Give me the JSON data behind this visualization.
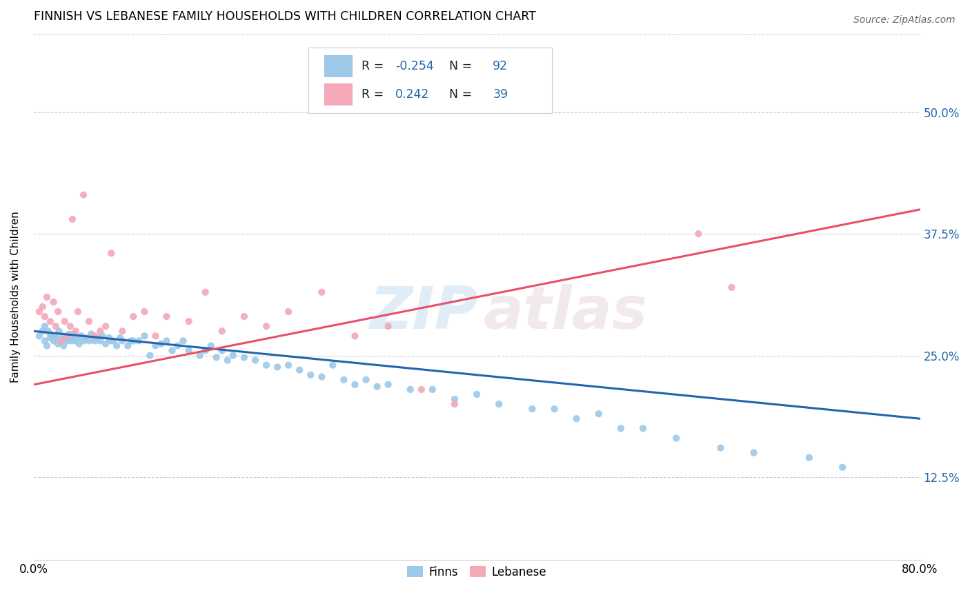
{
  "title": "FINNISH VS LEBANESE FAMILY HOUSEHOLDS WITH CHILDREN CORRELATION CHART",
  "source": "Source: ZipAtlas.com",
  "ylabel": "Family Households with Children",
  "ytick_labels": [
    "12.5%",
    "25.0%",
    "37.5%",
    "50.0%"
  ],
  "finn_color": "#9dc8e8",
  "lebanese_color": "#f4a8b8",
  "finn_line_color": "#2166ac",
  "lebanese_line_color": "#e8506a",
  "finn_R": -0.254,
  "finn_N": 92,
  "lebanese_R": 0.242,
  "lebanese_N": 39,
  "background_color": "#ffffff",
  "xlim": [
    0.0,
    0.8
  ],
  "ylim": [
    0.04,
    0.58
  ],
  "ytick_vals": [
    0.125,
    0.25,
    0.375,
    0.5
  ],
  "finn_scatter_x": [
    0.005,
    0.008,
    0.01,
    0.01,
    0.012,
    0.013,
    0.015,
    0.015,
    0.018,
    0.019,
    0.02,
    0.022,
    0.023,
    0.025,
    0.026,
    0.027,
    0.028,
    0.03,
    0.031,
    0.032,
    0.033,
    0.035,
    0.036,
    0.038,
    0.04,
    0.041,
    0.043,
    0.045,
    0.047,
    0.05,
    0.052,
    0.055,
    0.058,
    0.06,
    0.062,
    0.065,
    0.068,
    0.07,
    0.072,
    0.075,
    0.078,
    0.08,
    0.085,
    0.088,
    0.09,
    0.095,
    0.1,
    0.105,
    0.11,
    0.115,
    0.12,
    0.125,
    0.13,
    0.135,
    0.14,
    0.15,
    0.155,
    0.16,
    0.165,
    0.17,
    0.175,
    0.18,
    0.19,
    0.2,
    0.21,
    0.22,
    0.23,
    0.24,
    0.25,
    0.26,
    0.27,
    0.28,
    0.29,
    0.3,
    0.31,
    0.32,
    0.34,
    0.36,
    0.38,
    0.4,
    0.42,
    0.45,
    0.47,
    0.49,
    0.51,
    0.53,
    0.55,
    0.58,
    0.62,
    0.65,
    0.7,
    0.73
  ],
  "finn_scatter_y": [
    0.27,
    0.275,
    0.265,
    0.28,
    0.26,
    0.275,
    0.268,
    0.272,
    0.265,
    0.27,
    0.268,
    0.262,
    0.275,
    0.265,
    0.27,
    0.26,
    0.268,
    0.27,
    0.265,
    0.272,
    0.268,
    0.265,
    0.272,
    0.265,
    0.268,
    0.262,
    0.27,
    0.265,
    0.268,
    0.265,
    0.272,
    0.265,
    0.268,
    0.265,
    0.27,
    0.262,
    0.268,
    0.265,
    0.265,
    0.26,
    0.268,
    0.265,
    0.26,
    0.265,
    0.265,
    0.265,
    0.27,
    0.25,
    0.26,
    0.262,
    0.265,
    0.255,
    0.26,
    0.265,
    0.255,
    0.25,
    0.255,
    0.26,
    0.248,
    0.255,
    0.245,
    0.25,
    0.248,
    0.245,
    0.24,
    0.238,
    0.24,
    0.235,
    0.23,
    0.228,
    0.24,
    0.225,
    0.22,
    0.225,
    0.218,
    0.22,
    0.215,
    0.215,
    0.205,
    0.21,
    0.2,
    0.195,
    0.195,
    0.185,
    0.19,
    0.175,
    0.175,
    0.165,
    0.155,
    0.15,
    0.145,
    0.135
  ],
  "lebanese_scatter_x": [
    0.005,
    0.008,
    0.01,
    0.012,
    0.015,
    0.018,
    0.02,
    0.022,
    0.025,
    0.028,
    0.03,
    0.033,
    0.035,
    0.038,
    0.04,
    0.045,
    0.05,
    0.055,
    0.06,
    0.065,
    0.07,
    0.08,
    0.09,
    0.1,
    0.11,
    0.12,
    0.14,
    0.155,
    0.17,
    0.19,
    0.21,
    0.23,
    0.26,
    0.29,
    0.32,
    0.35,
    0.38,
    0.6,
    0.63
  ],
  "lebanese_scatter_y": [
    0.295,
    0.3,
    0.29,
    0.31,
    0.285,
    0.305,
    0.28,
    0.295,
    0.265,
    0.285,
    0.27,
    0.28,
    0.39,
    0.275,
    0.295,
    0.415,
    0.285,
    0.27,
    0.275,
    0.28,
    0.355,
    0.275,
    0.29,
    0.295,
    0.27,
    0.29,
    0.285,
    0.315,
    0.275,
    0.29,
    0.28,
    0.295,
    0.315,
    0.27,
    0.28,
    0.215,
    0.2,
    0.375,
    0.32
  ]
}
